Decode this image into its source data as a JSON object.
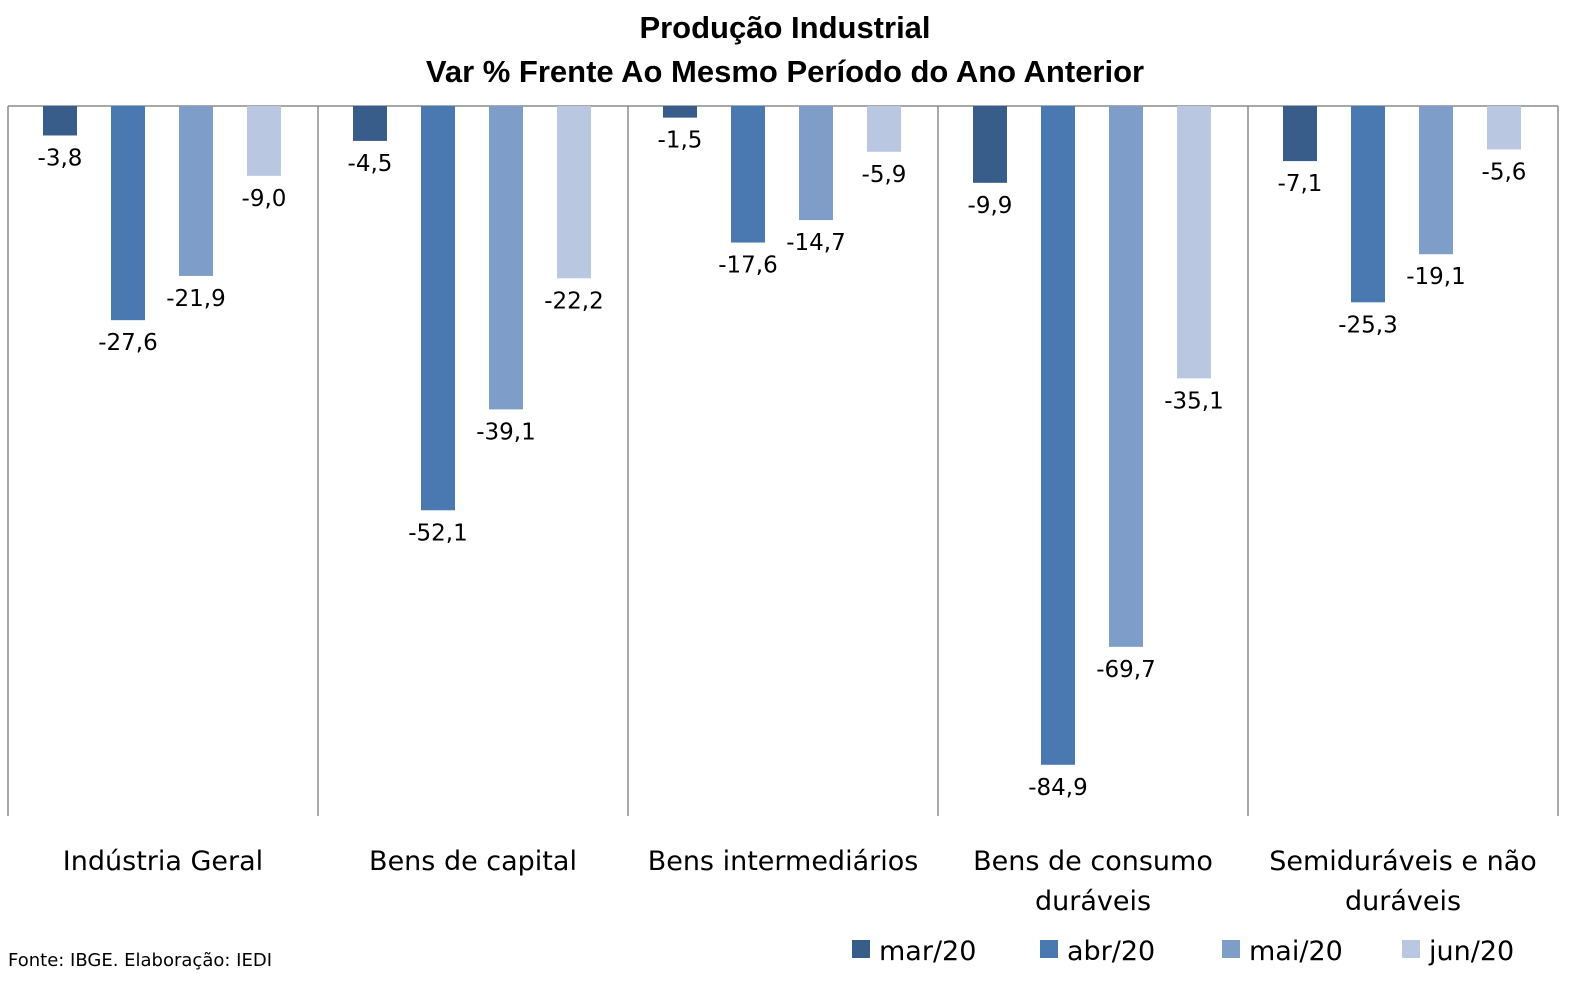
{
  "chart_data": {
    "type": "bar",
    "title": "Produção Industrial",
    "subtitle": "Var % Frente Ao Mesmo Período do Ano Anterior",
    "categories": [
      [
        "Indústria Geral"
      ],
      [
        "Bens de capital"
      ],
      [
        "Bens intermediários"
      ],
      [
        "Bens de consumo",
        "duráveis"
      ],
      [
        "Semiduráveis e não",
        "duráveis"
      ]
    ],
    "series": [
      {
        "name": "mar/20",
        "color": "#385d8a",
        "values": [
          -3.8,
          -4.5,
          -1.5,
          -9.9,
          -7.1
        ],
        "labels": [
          "-3,8",
          "-4,5",
          "-1,5",
          "-9,9",
          "-7,1"
        ]
      },
      {
        "name": "abr/20",
        "color": "#4a78b0",
        "values": [
          -27.6,
          -52.1,
          -17.6,
          -84.9,
          -25.3
        ],
        "labels": [
          "-27,6",
          "-52,1",
          "-17,6",
          "-84,9",
          "-25,3"
        ]
      },
      {
        "name": "mai/20",
        "color": "#7f9dc9",
        "values": [
          -21.9,
          -39.1,
          -14.7,
          -69.7,
          -19.1
        ],
        "labels": [
          "-21,9",
          "-39,1",
          "-14,7",
          "-69,7",
          "-19,1"
        ]
      },
      {
        "name": "jun/20",
        "color": "#b9c7e0",
        "values": [
          -9.0,
          -22.2,
          -5.9,
          -35.1,
          -5.6
        ],
        "labels": [
          "-9,0",
          "-22,2",
          "-5,9",
          "-35,1",
          "-5,6"
        ]
      }
    ],
    "ylim": [
      -91.5,
      0
    ],
    "xlabel": "",
    "ylabel": "",
    "legend": "bottom-right",
    "grid": false
  },
  "source": "Fonte: IBGE. Elaboração: IEDI"
}
